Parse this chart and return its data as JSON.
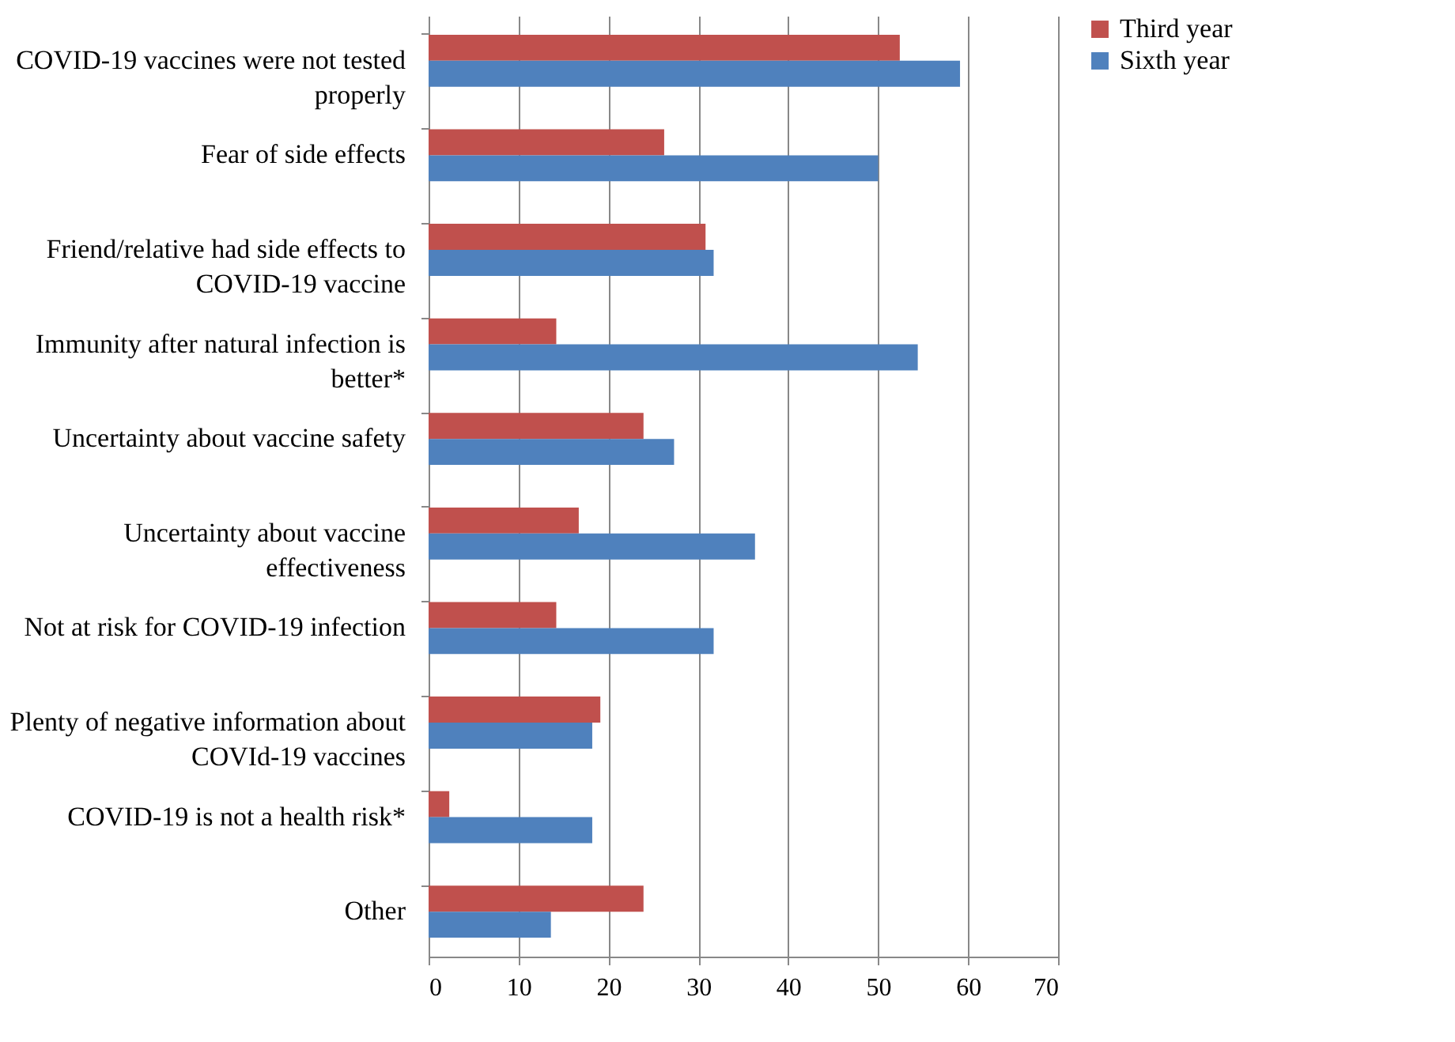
{
  "chart_data": {
    "type": "bar",
    "orientation": "horizontal",
    "categories": [
      "COVID-19 vaccines were not tested properly",
      "Fear of side effects",
      "Friend/relative had side effects to COVID-19 vaccine",
      "Immunity after natural infection is better*",
      "Uncertainty about vaccine safety",
      "Uncertainty about vaccine effectiveness",
      "Not at risk for COVID-19 infection",
      "Plenty of negative information about COVId-19 vaccines",
      "COVID-19 is not a health risk*",
      "Other"
    ],
    "series": [
      {
        "name": "Third year",
        "color": "#c0504d",
        "values": [
          52.4,
          26.2,
          30.8,
          14.2,
          23.9,
          16.7,
          14.2,
          19.1,
          2.3,
          23.9
        ]
      },
      {
        "name": "Sixth year",
        "color": "#4f81bd",
        "values": [
          59.1,
          50,
          31.7,
          54.4,
          27.3,
          36.3,
          31.7,
          18.2,
          18.2,
          13.6
        ]
      }
    ],
    "xlim": [
      0,
      70
    ],
    "xticks": [
      0,
      10,
      20,
      30,
      40,
      50,
      60,
      70
    ],
    "grid": "x",
    "legend": "right"
  }
}
